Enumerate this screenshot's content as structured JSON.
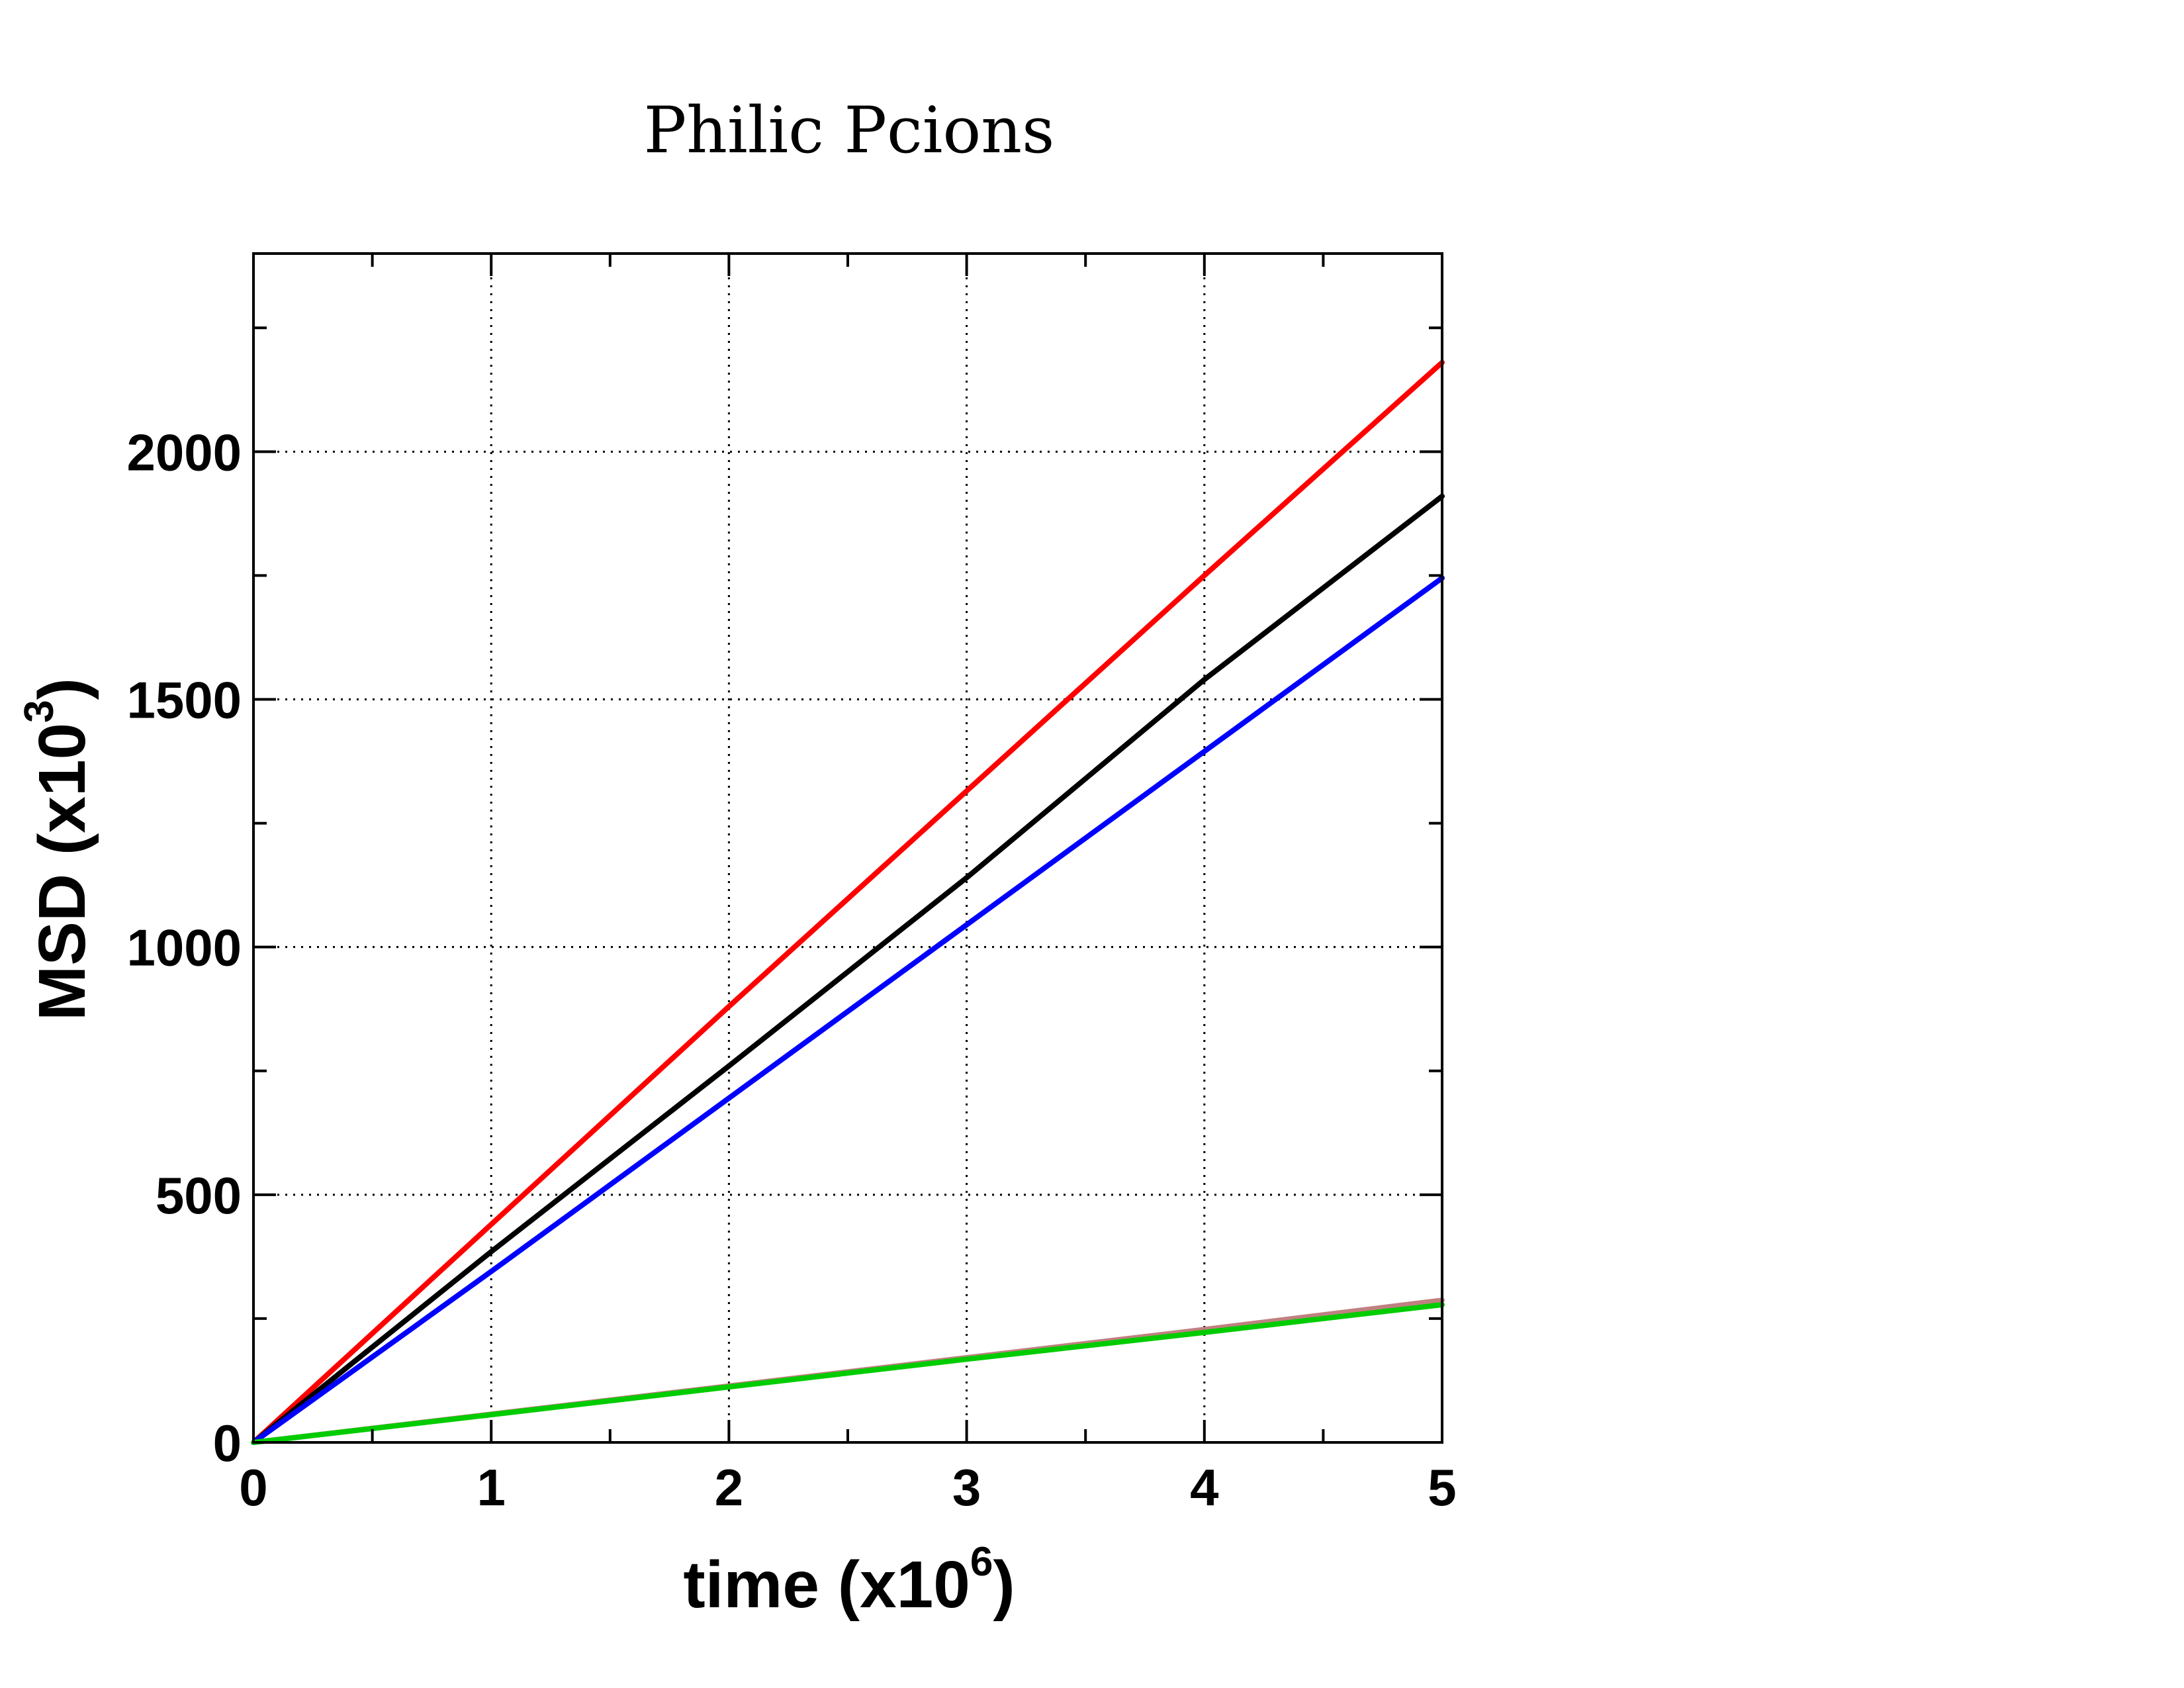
{
  "chart_data": {
    "type": "line",
    "title": "Philic Pcions",
    "xlabel": "time (x10",
    "xlabel_sup": "6",
    "xlabel_end": ")",
    "ylabel": "MSD (x10",
    "ylabel_sup": "3",
    "ylabel_end": ")",
    "xlim": [
      0,
      5
    ],
    "ylim": [
      0,
      2400
    ],
    "x_ticks": [
      0,
      1,
      2,
      3,
      4,
      5
    ],
    "x_tick_labels": [
      "0",
      "1",
      "2",
      "3",
      "4",
      "5"
    ],
    "y_ticks": [
      0,
      500,
      1000,
      1500,
      2000
    ],
    "y_tick_labels": [
      "0",
      "500",
      "1000",
      "1500",
      "2000"
    ],
    "x_minor_ticks": [
      0.5,
      1.5,
      2.5,
      3.5,
      4.5
    ],
    "y_minor_ticks": [
      250,
      750,
      1250,
      1750,
      2250
    ],
    "grid": true,
    "series": [
      {
        "color": "#ff0000",
        "x": [
          0,
          1,
          2,
          3,
          4,
          5
        ],
        "values": [
          0,
          440,
          880,
          1315,
          1750,
          2180
        ]
      },
      {
        "color": "#000000",
        "x": [
          0,
          1,
          2,
          3,
          4,
          5
        ],
        "values": [
          0,
          385,
          760,
          1140,
          1540,
          1910
        ]
      },
      {
        "color": "#0000ff",
        "x": [
          0,
          1,
          2,
          3,
          4,
          5
        ],
        "values": [
          0,
          345,
          695,
          1045,
          1395,
          1745
        ]
      },
      {
        "color": "#c08080",
        "x": [
          0,
          1,
          2,
          3,
          4,
          5
        ],
        "values": [
          0,
          57,
          114,
          171,
          228,
          287
        ]
      },
      {
        "color": "#00cc00",
        "x": [
          0,
          1,
          2,
          3,
          4,
          5
        ],
        "values": [
          0,
          56,
          112,
          168,
          222,
          278
        ]
      }
    ]
  }
}
